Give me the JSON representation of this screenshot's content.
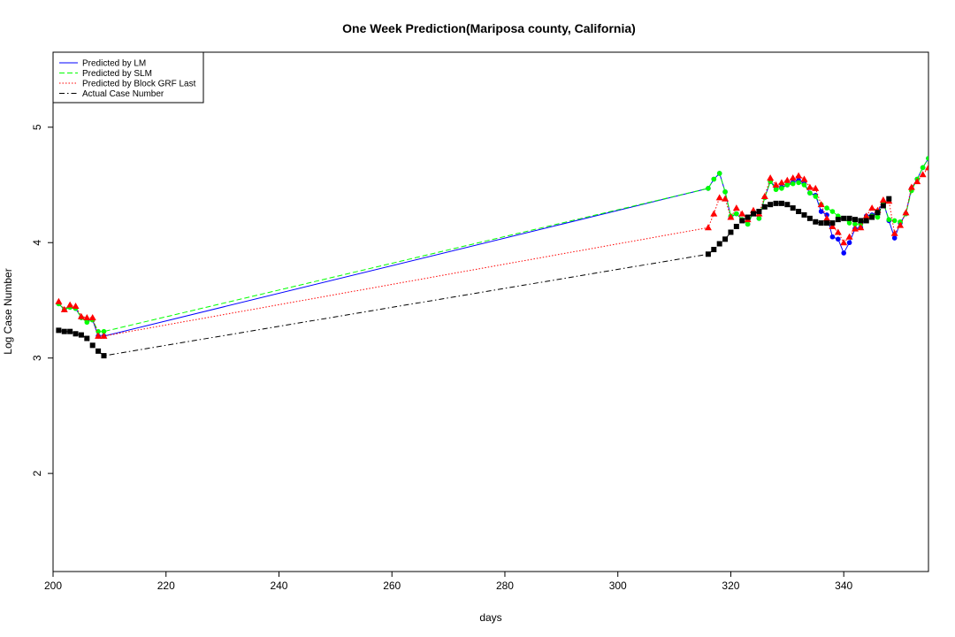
{
  "chart_data": {
    "type": "line",
    "title": "One Week Prediction(Mariposa county, California)",
    "xlabel": "days",
    "ylabel": "Log Case Number",
    "xlim": [
      200,
      355
    ],
    "ylim": [
      1.15,
      5.65
    ],
    "x_ticks": [
      200,
      220,
      240,
      260,
      280,
      300,
      320,
      340
    ],
    "y_ticks": [
      2,
      3,
      4,
      5
    ],
    "legend_position": "top-left",
    "x": [
      201,
      202,
      203,
      204,
      205,
      206,
      207,
      208,
      209,
      316,
      317,
      318,
      319,
      320,
      321,
      322,
      323,
      324,
      325,
      326,
      327,
      328,
      329,
      330,
      331,
      332,
      333,
      334,
      335,
      336,
      337,
      338,
      339,
      340,
      341,
      342,
      343,
      344,
      345,
      346,
      347,
      348,
      349,
      350,
      351,
      352,
      353,
      354,
      355
    ],
    "series": [
      {
        "name": "Predicted by LM",
        "color": "#0000ff",
        "dash": "solid",
        "marker": "circle",
        "values": [
          3.47,
          3.42,
          3.44,
          3.43,
          3.35,
          3.33,
          3.33,
          3.19,
          3.19,
          4.47,
          4.55,
          4.6,
          4.44,
          4.22,
          4.25,
          4.2,
          4.16,
          4.26,
          4.21,
          4.39,
          4.53,
          4.48,
          4.48,
          4.5,
          4.52,
          4.54,
          4.51,
          4.43,
          4.41,
          4.27,
          4.24,
          4.05,
          4.03,
          3.91,
          4.0,
          4.12,
          4.13,
          4.23,
          4.24,
          4.27,
          4.35,
          4.19,
          4.04,
          4.17,
          4.25,
          4.47,
          4.55,
          4.65,
          4.73
        ]
      },
      {
        "name": "Predicted by SLM",
        "color": "#00ff00",
        "dash": "dashed",
        "marker": "circle",
        "values": [
          3.47,
          3.42,
          3.44,
          3.43,
          3.35,
          3.31,
          3.33,
          3.23,
          3.23,
          4.47,
          4.55,
          4.6,
          4.44,
          4.23,
          4.25,
          4.2,
          4.16,
          4.26,
          4.21,
          4.39,
          4.53,
          4.46,
          4.47,
          4.5,
          4.51,
          4.52,
          4.5,
          4.43,
          4.4,
          4.33,
          4.3,
          4.27,
          4.23,
          4.21,
          4.17,
          4.16,
          4.16,
          4.22,
          4.23,
          4.22,
          4.35,
          4.2,
          4.19,
          4.18,
          4.25,
          4.45,
          4.55,
          4.65,
          4.73
        ]
      },
      {
        "name": "Predicted by Block GRF Last",
        "color": "#ff0000",
        "dash": "dotted",
        "marker": "triangle",
        "values": [
          3.49,
          3.42,
          3.46,
          3.45,
          3.36,
          3.35,
          3.35,
          3.19,
          3.19,
          4.13,
          4.25,
          4.39,
          4.38,
          4.22,
          4.3,
          4.25,
          4.2,
          4.28,
          4.25,
          4.4,
          4.56,
          4.5,
          4.52,
          4.54,
          4.56,
          4.58,
          4.55,
          4.48,
          4.47,
          4.33,
          4.21,
          4.14,
          4.09,
          4.0,
          4.05,
          4.12,
          4.13,
          4.23,
          4.3,
          4.28,
          4.37,
          4.36,
          4.08,
          4.15,
          4.26,
          4.48,
          4.53,
          4.59,
          4.65
        ]
      },
      {
        "name": "Actual Case Number",
        "color": "#000000",
        "dash": "dashdot",
        "marker": "square",
        "values": [
          3.24,
          3.23,
          3.23,
          3.21,
          3.2,
          3.17,
          3.11,
          3.06,
          3.02,
          3.9,
          3.94,
          3.99,
          4.03,
          4.09,
          4.14,
          4.19,
          4.22,
          4.25,
          4.27,
          4.31,
          4.33,
          4.34,
          4.34,
          4.33,
          4.3,
          4.27,
          4.24,
          4.21,
          4.18,
          4.17,
          4.17,
          4.17,
          4.2,
          4.21,
          4.21,
          4.2,
          4.19,
          4.19,
          4.22,
          4.26,
          4.32,
          4.38,
          null,
          null,
          null,
          null,
          null,
          null,
          null
        ]
      }
    ]
  }
}
